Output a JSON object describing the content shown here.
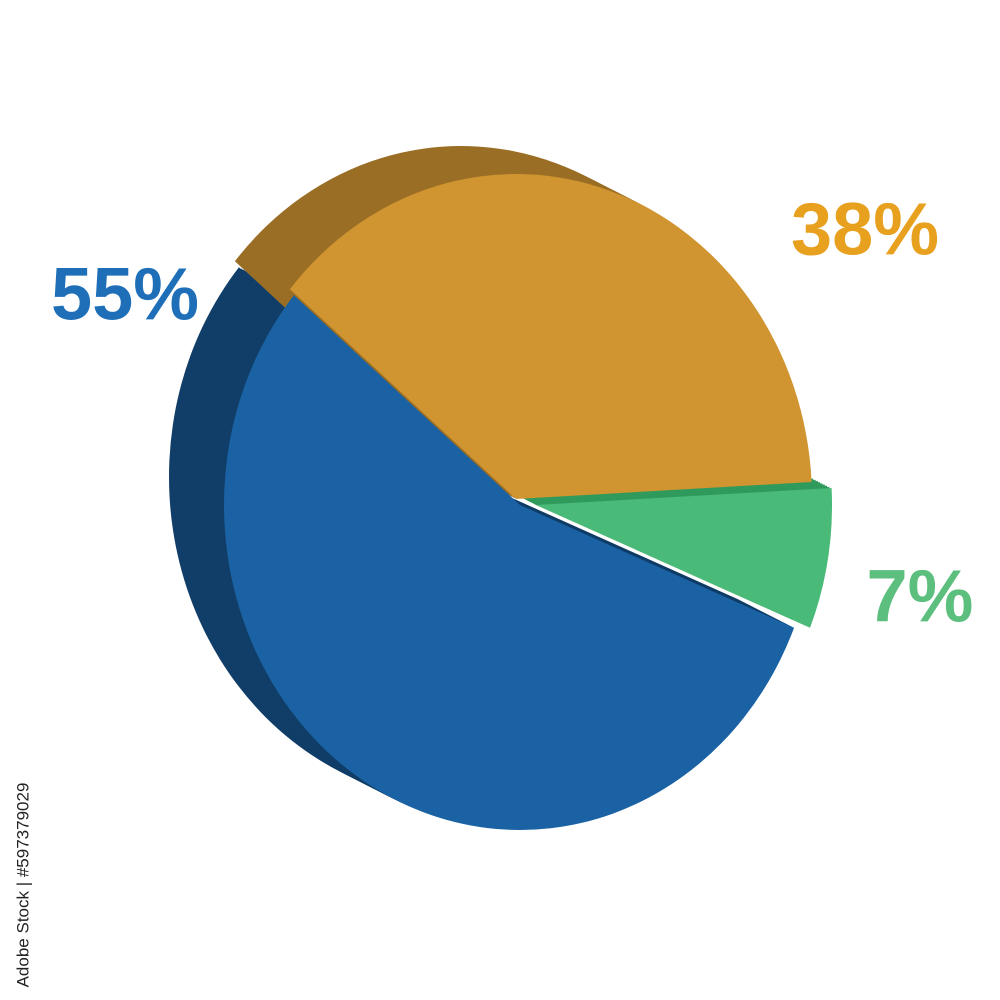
{
  "chart_data": {
    "type": "pie",
    "values": [
      7,
      55,
      38
    ],
    "value_labels": [
      "7%",
      "55%",
      "38%"
    ],
    "colors": [
      "#4aba78",
      "#1a62a3",
      "#d09530"
    ],
    "side_colors": [
      "#2f9a5c",
      "#113e68",
      "#9a6e25"
    ],
    "label_colors": [
      "#5cbf7d",
      "#1f6fb8",
      "#e8a01f"
    ],
    "source": "Adobe Stock | #597379029"
  }
}
